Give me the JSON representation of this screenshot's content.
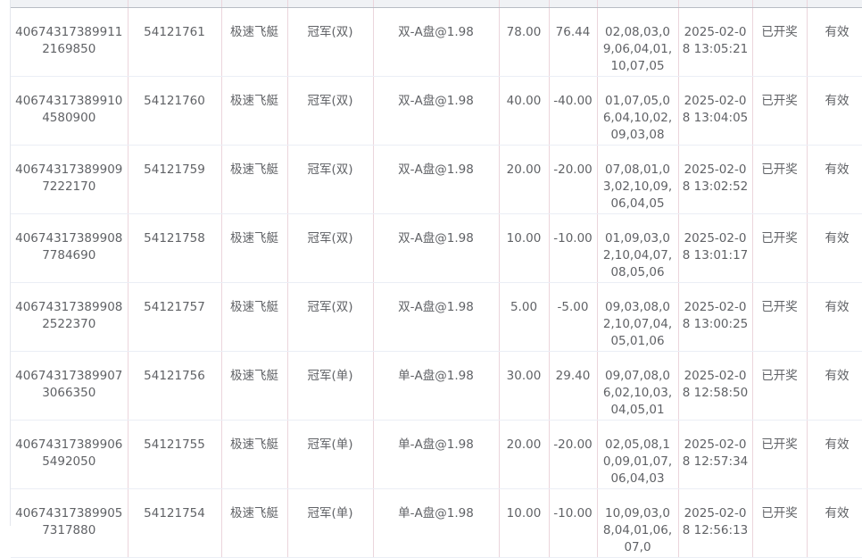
{
  "rows": [
    [
      "406743173899112169850",
      "54121761",
      "极速飞艇",
      "冠军(双)",
      "双-A盘@1.98",
      "78.00",
      "76.44",
      "02,08,03,09,06,04,01,10,07,05",
      "2025-02-08 13:05:21",
      "已开奖",
      "有效"
    ],
    [
      "406743173899104580900",
      "54121760",
      "极速飞艇",
      "冠军(双)",
      "双-A盘@1.98",
      "40.00",
      "-40.00",
      "01,07,05,06,04,10,02,09,03,08",
      "2025-02-08 13:04:05",
      "已开奖",
      "有效"
    ],
    [
      "406743173899097222170",
      "54121759",
      "极速飞艇",
      "冠军(双)",
      "双-A盘@1.98",
      "20.00",
      "-20.00",
      "07,08,01,03,02,10,09,06,04,05",
      "2025-02-08 13:02:52",
      "已开奖",
      "有效"
    ],
    [
      "406743173899087784690",
      "54121758",
      "极速飞艇",
      "冠军(双)",
      "双-A盘@1.98",
      "10.00",
      "-10.00",
      "01,09,03,02,10,04,07,08,05,06",
      "2025-02-08 13:01:17",
      "已开奖",
      "有效"
    ],
    [
      "406743173899082522370",
      "54121757",
      "极速飞艇",
      "冠军(双)",
      "双-A盘@1.98",
      "5.00",
      "-5.00",
      "09,03,08,02,10,07,04,05,01,06",
      "2025-02-08 13:00:25",
      "已开奖",
      "有效"
    ],
    [
      "406743173899073066350",
      "54121756",
      "极速飞艇",
      "冠军(单)",
      "单-A盘@1.98",
      "30.00",
      "29.40",
      "09,07,08,06,02,10,03,04,05,01",
      "2025-02-08 12:58:50",
      "已开奖",
      "有效"
    ],
    [
      "406743173899065492050",
      "54121755",
      "极速飞艇",
      "冠军(单)",
      "单-A盘@1.98",
      "20.00",
      "-20.00",
      "02,05,08,10,09,01,07,06,04,03",
      "2025-02-08 12:57:34",
      "已开奖",
      "有效"
    ],
    [
      "406743173899057317880",
      "54121754",
      "极速飞艇",
      "冠军(单)",
      "单-A盘@1.98",
      "10.00",
      "-10.00",
      "10,09,03,08,04,01,06,07,0",
      "2025-02-08 12:56:13",
      "已开奖",
      "有效"
    ]
  ]
}
